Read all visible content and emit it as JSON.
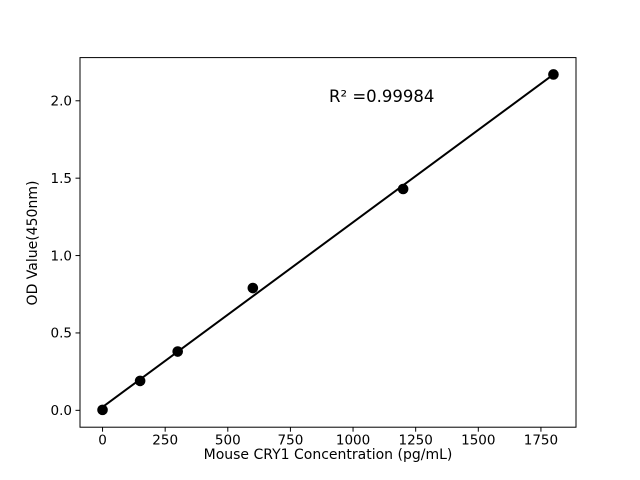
{
  "chart_data": {
    "type": "scatter",
    "title": "",
    "xlabel": "Mouse CRY1 Concentration (pg/mL)",
    "ylabel": "OD Value(450nm)",
    "annotation": "R² =0.99984",
    "r_squared": 0.99984,
    "x": [
      0,
      150,
      300,
      600,
      1200,
      1800
    ],
    "y": [
      0.003,
      0.19,
      0.38,
      0.79,
      1.43,
      2.17
    ],
    "xlim": [
      -90,
      1890
    ],
    "ylim": [
      -0.109,
      2.279
    ],
    "xticks": [
      0,
      250,
      500,
      750,
      1000,
      1250,
      1500,
      1750
    ],
    "xtick_labels": [
      "0",
      "250",
      "500",
      "750",
      "1000",
      "1250",
      "1500",
      "1750"
    ],
    "yticks": [
      0.0,
      0.5,
      1.0,
      1.5,
      2.0
    ],
    "ytick_labels": [
      "0.0",
      "0.5",
      "1.0",
      "1.5",
      "2.0"
    ],
    "trendline": {
      "slope": 0.001194,
      "intercept": 0.021,
      "x_start": 0,
      "x_end": 1800
    },
    "grid": false,
    "legend": null,
    "colors": {
      "marker": "#000000",
      "line": "#000000",
      "axis": "#000000",
      "background": "#ffffff",
      "text": "#000000"
    }
  }
}
